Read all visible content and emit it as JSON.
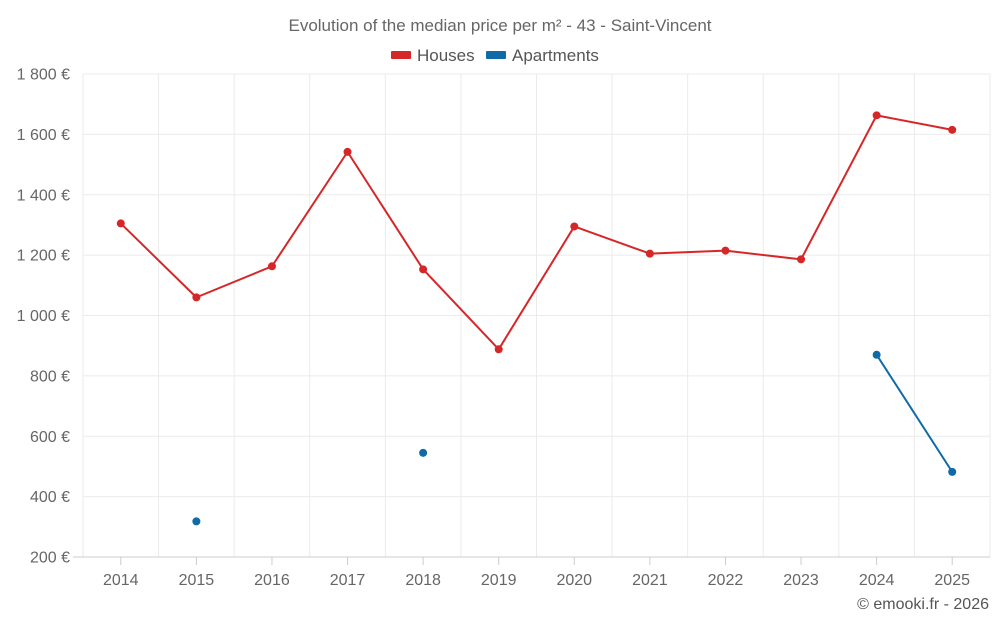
{
  "chart_data": {
    "type": "line",
    "title": "Evolution of the median price per m² - 43 - Saint-Vincent",
    "x": [
      "2014",
      "2015",
      "2016",
      "2017",
      "2018",
      "2019",
      "2020",
      "2021",
      "2022",
      "2023",
      "2024",
      "2025"
    ],
    "y_ticks": [
      "200 €",
      "400 €",
      "600 €",
      "800 €",
      "1 000 €",
      "1 200 €",
      "1 400 €",
      "1 600 €",
      "1 800 €"
    ],
    "ylim": [
      200,
      1800
    ],
    "xlabel": "",
    "ylabel": "",
    "grid": true,
    "legend_position": "top-center",
    "series": [
      {
        "name": "Houses",
        "color": "#d62728",
        "values": [
          1305,
          1060,
          1163,
          1542,
          1153,
          888,
          1295,
          1205,
          1215,
          1186,
          1663,
          1615
        ]
      },
      {
        "name": "Apartments",
        "color": "#0f6aa8",
        "values": [
          null,
          318,
          null,
          null,
          545,
          null,
          null,
          null,
          null,
          null,
          870,
          482
        ]
      }
    ]
  },
  "credit": "© emooki.fr - 2026"
}
